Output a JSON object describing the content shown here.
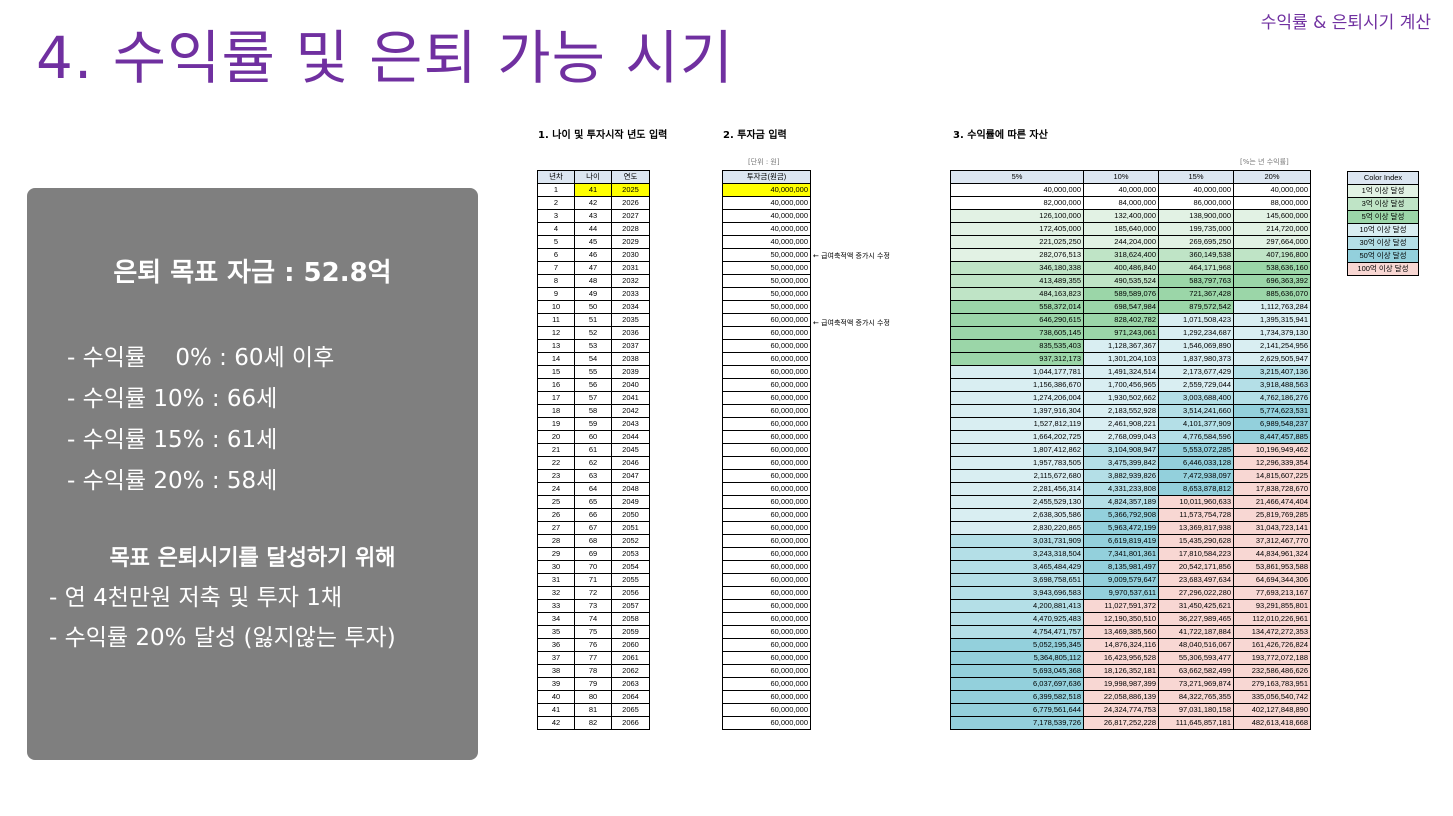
{
  "header": {
    "title": "4. 수익률 및 은퇴 가능 시기",
    "corner": "수익률 & 은퇴시기 계산"
  },
  "summary": {
    "goal": "은퇴 목표 자금 : 52.8억",
    "retire_items": [
      "- 수익률    0% : 60세 이후",
      "- 수익률 10% : 66세",
      "- 수익률 15% : 61세",
      "- 수익률 20% : 58세"
    ],
    "action_title": "목표 은퇴시기를 달성하기 위해",
    "action_items": [
      "- 연 4천만원 저축 및 투자 1채",
      "- 수익률 20% 달성 (잃지않는 투자)"
    ]
  },
  "sections": {
    "s1": "1. 나이 및 투자시작 년도 입력",
    "s2": "2. 투자금 입력",
    "s3": "3. 수익률에 따른 자산",
    "unit_note": "[단위 : 원]",
    "rate_note": "[%는 년 수익률]",
    "salary_note": "← 급여축적액 증가시 수정"
  },
  "table1": {
    "headers": [
      "년차",
      "나이",
      "연도"
    ],
    "rows": [
      [
        1,
        41,
        2025
      ],
      [
        2,
        42,
        2026
      ],
      [
        3,
        43,
        2027
      ],
      [
        4,
        44,
        2028
      ],
      [
        5,
        45,
        2029
      ],
      [
        6,
        46,
        2030
      ],
      [
        7,
        47,
        2031
      ],
      [
        8,
        48,
        2032
      ],
      [
        9,
        49,
        2033
      ],
      [
        10,
        50,
        2034
      ],
      [
        11,
        51,
        2035
      ],
      [
        12,
        52,
        2036
      ],
      [
        13,
        53,
        2037
      ],
      [
        14,
        54,
        2038
      ],
      [
        15,
        55,
        2039
      ],
      [
        16,
        56,
        2040
      ],
      [
        17,
        57,
        2041
      ],
      [
        18,
        58,
        2042
      ],
      [
        19,
        59,
        2043
      ],
      [
        20,
        60,
        2044
      ],
      [
        21,
        61,
        2045
      ],
      [
        22,
        62,
        2046
      ],
      [
        23,
        63,
        2047
      ],
      [
        24,
        64,
        2048
      ],
      [
        25,
        65,
        2049
      ],
      [
        26,
        66,
        2050
      ],
      [
        27,
        67,
        2051
      ],
      [
        28,
        68,
        2052
      ],
      [
        29,
        69,
        2053
      ],
      [
        30,
        70,
        2054
      ],
      [
        31,
        71,
        2055
      ],
      [
        32,
        72,
        2056
      ],
      [
        33,
        73,
        2057
      ],
      [
        34,
        74,
        2058
      ],
      [
        35,
        75,
        2059
      ],
      [
        36,
        76,
        2060
      ],
      [
        37,
        77,
        2061
      ],
      [
        38,
        78,
        2062
      ],
      [
        39,
        79,
        2063
      ],
      [
        40,
        80,
        2064
      ],
      [
        41,
        81,
        2065
      ],
      [
        42,
        82,
        2066
      ]
    ]
  },
  "table2": {
    "header": "투자금(원금)",
    "values": [
      "40,000,000",
      "40,000,000",
      "40,000,000",
      "40,000,000",
      "40,000,000",
      "50,000,000",
      "50,000,000",
      "50,000,000",
      "50,000,000",
      "50,000,000",
      "60,000,000",
      "60,000,000",
      "60,000,000",
      "60,000,000",
      "60,000,000",
      "60,000,000",
      "60,000,000",
      "60,000,000",
      "60,000,000",
      "60,000,000",
      "60,000,000",
      "60,000,000",
      "60,000,000",
      "60,000,000",
      "60,000,000",
      "60,000,000",
      "60,000,000",
      "60,000,000",
      "60,000,000",
      "60,000,000",
      "60,000,000",
      "60,000,000",
      "60,000,000",
      "60,000,000",
      "60,000,000",
      "60,000,000",
      "60,000,000",
      "60,000,000",
      "60,000,000",
      "60,000,000",
      "60,000,000",
      "60,000,000"
    ]
  },
  "table3": {
    "headers": [
      "5%",
      "10%",
      "15%",
      "20%"
    ],
    "rows": [
      [
        "40,000,000",
        "40,000,000",
        "40,000,000",
        "40,000,000"
      ],
      [
        "82,000,000",
        "84,000,000",
        "86,000,000",
        "88,000,000"
      ],
      [
        "126,100,000",
        "132,400,000",
        "138,900,000",
        "145,600,000"
      ],
      [
        "172,405,000",
        "185,640,000",
        "199,735,000",
        "214,720,000"
      ],
      [
        "221,025,250",
        "244,204,000",
        "269,695,250",
        "297,664,000"
      ],
      [
        "282,076,513",
        "318,624,400",
        "360,149,538",
        "407,196,800"
      ],
      [
        "346,180,338",
        "400,486,840",
        "464,171,968",
        "538,636,160"
      ],
      [
        "413,489,355",
        "490,535,524",
        "583,797,763",
        "696,363,392"
      ],
      [
        "484,163,823",
        "589,589,076",
        "721,367,428",
        "885,636,070"
      ],
      [
        "558,372,014",
        "698,547,984",
        "879,572,542",
        "1,112,763,284"
      ],
      [
        "646,290,615",
        "828,402,782",
        "1,071,508,423",
        "1,395,315,941"
      ],
      [
        "738,605,145",
        "971,243,061",
        "1,292,234,687",
        "1,734,379,130"
      ],
      [
        "835,535,403",
        "1,128,367,367",
        "1,546,069,890",
        "2,141,254,956"
      ],
      [
        "937,312,173",
        "1,301,204,103",
        "1,837,980,373",
        "2,629,505,947"
      ],
      [
        "1,044,177,781",
        "1,491,324,514",
        "2,173,677,429",
        "3,215,407,136"
      ],
      [
        "1,156,386,670",
        "1,700,456,965",
        "2,559,729,044",
        "3,918,488,563"
      ],
      [
        "1,274,206,004",
        "1,930,502,662",
        "3,003,688,400",
        "4,762,186,276"
      ],
      [
        "1,397,916,304",
        "2,183,552,928",
        "3,514,241,660",
        "5,774,623,531"
      ],
      [
        "1,527,812,119",
        "2,461,908,221",
        "4,101,377,909",
        "6,989,548,237"
      ],
      [
        "1,664,202,725",
        "2,768,099,043",
        "4,776,584,596",
        "8,447,457,885"
      ],
      [
        "1,807,412,862",
        "3,104,908,947",
        "5,553,072,285",
        "10,196,949,462"
      ],
      [
        "1,957,783,505",
        "3,475,399,842",
        "6,446,033,128",
        "12,296,339,354"
      ],
      [
        "2,115,672,680",
        "3,882,939,826",
        "7,472,938,097",
        "14,815,607,225"
      ],
      [
        "2,281,456,314",
        "4,331,233,808",
        "8,653,878,812",
        "17,838,728,670"
      ],
      [
        "2,455,529,130",
        "4,824,357,189",
        "10,011,960,633",
        "21,466,474,404"
      ],
      [
        "2,638,305,586",
        "5,366,792,908",
        "11,573,754,728",
        "25,819,769,285"
      ],
      [
        "2,830,220,865",
        "5,963,472,199",
        "13,369,817,938",
        "31,043,723,141"
      ],
      [
        "3,031,731,909",
        "6,619,819,419",
        "15,435,290,628",
        "37,312,467,770"
      ],
      [
        "3,243,318,504",
        "7,341,801,361",
        "17,810,584,223",
        "44,834,961,324"
      ],
      [
        "3,465,484,429",
        "8,135,981,497",
        "20,542,171,856",
        "53,861,953,588"
      ],
      [
        "3,698,758,651",
        "9,009,579,647",
        "23,683,497,634",
        "64,694,344,306"
      ],
      [
        "3,943,696,583",
        "9,970,537,611",
        "27,296,022,280",
        "77,693,213,167"
      ],
      [
        "4,200,881,413",
        "11,027,591,372",
        "31,450,425,621",
        "93,291,855,801"
      ],
      [
        "4,470,925,483",
        "12,190,350,510",
        "36,227,989,465",
        "112,010,226,961"
      ],
      [
        "4,754,471,757",
        "13,469,385,560",
        "41,722,187,884",
        "134,472,272,353"
      ],
      [
        "5,052,195,345",
        "14,876,324,116",
        "48,040,516,067",
        "161,426,726,824"
      ],
      [
        "5,364,805,112",
        "16,423,956,528",
        "55,306,593,477",
        "193,772,072,188"
      ],
      [
        "5,693,045,368",
        "18,126,352,181",
        "63,662,582,499",
        "232,586,486,626"
      ],
      [
        "6,037,697,636",
        "19,998,987,399",
        "73,271,969,874",
        "279,163,783,951"
      ],
      [
        "6,399,582,518",
        "22,058,886,139",
        "84,322,765,355",
        "335,056,540,742"
      ],
      [
        "6,779,561,644",
        "24,324,774,753",
        "97,031,180,158",
        "402,127,848,890"
      ],
      [
        "7,178,539,726",
        "26,817,252,228",
        "111,645,857,181",
        "482,613,418,668"
      ]
    ]
  },
  "legend": {
    "header": "Color Index",
    "items": [
      {
        "label": "1억 이상 달성",
        "color": "#e2f2e4"
      },
      {
        "label": "3억 이상 달성",
        "color": "#bfe4c6"
      },
      {
        "label": "5억 이상 달성",
        "color": "#9bd6a8"
      },
      {
        "label": "10억 이상 달성",
        "color": "#d9eef2"
      },
      {
        "label": "30억 이상 달성",
        "color": "#b4dfe7"
      },
      {
        "label": "50억 이상 달성",
        "color": "#93d0dc"
      },
      {
        "label": "100억 이상 달성",
        "color": "#f8d7d3"
      }
    ]
  }
}
